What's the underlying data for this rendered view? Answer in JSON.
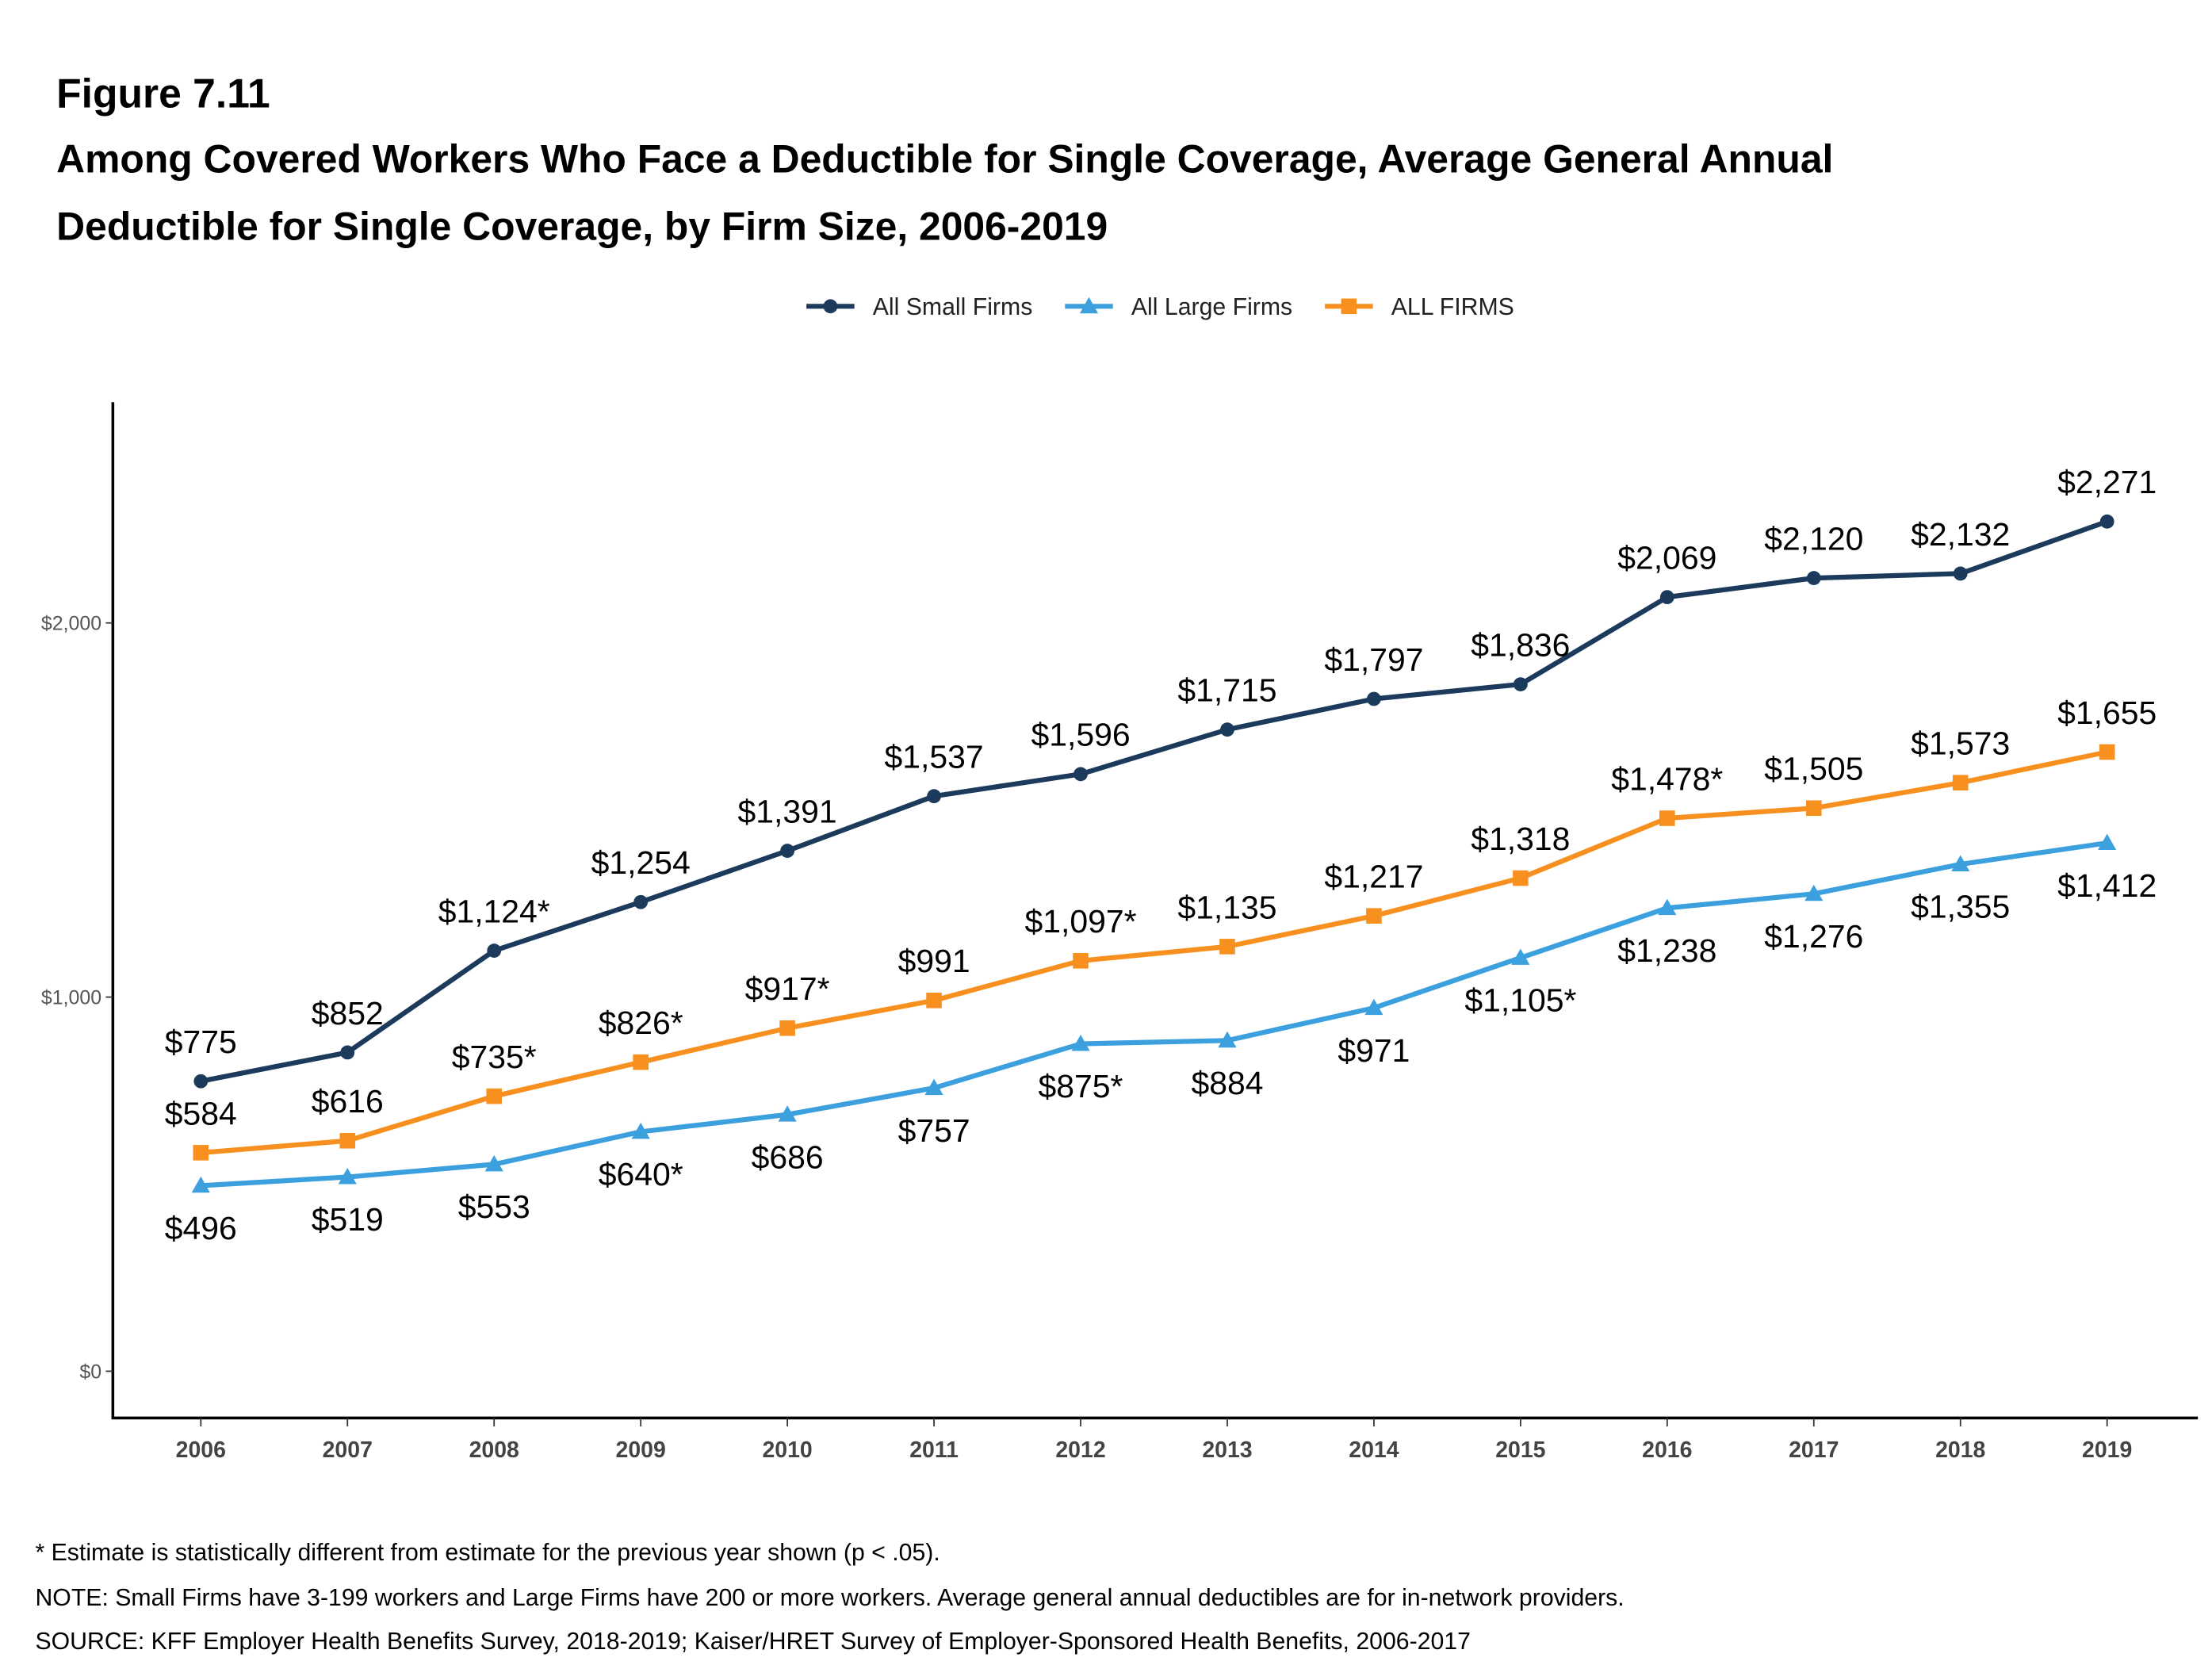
{
  "chart_data": {
    "type": "line",
    "figure_label": "Figure 7.11",
    "title": [
      "Among Covered Workers Who Face a Deductible for Single Coverage, Average General Annual",
      "Deductible for Single Coverage, by Firm Size, 2006-2019"
    ],
    "categories": [
      "2006",
      "2007",
      "2008",
      "2009",
      "2010",
      "2011",
      "2012",
      "2013",
      "2014",
      "2015",
      "2016",
      "2017",
      "2018",
      "2019"
    ],
    "series": [
      {
        "name": "All Small Firms",
        "color": "#1b3a5c",
        "marker": "circle",
        "label_position": "above",
        "values": [
          775,
          852,
          1124,
          1254,
          1391,
          1537,
          1596,
          1715,
          1797,
          1836,
          2069,
          2120,
          2132,
          2271
        ],
        "value_labels": [
          "$775",
          "$852",
          "$1,124*",
          "$1,254",
          "$1,391",
          "$1,537",
          "$1,596",
          "$1,715",
          "$1,797",
          "$1,836",
          "$2,069",
          "$2,120",
          "$2,132",
          "$2,271"
        ]
      },
      {
        "name": "All Large Firms",
        "color": "#3ba0dd",
        "marker": "triangle",
        "label_position": "below",
        "values": [
          496,
          519,
          553,
          640,
          686,
          757,
          875,
          884,
          971,
          1105,
          1238,
          1276,
          1355,
          1412
        ],
        "value_labels": [
          "$496",
          "$519",
          "$553",
          "$640*",
          "$686",
          "$757",
          "$875*",
          "$884",
          "$971",
          "$1,105*",
          "$1,238",
          "$1,276",
          "$1,355",
          "$1,412"
        ]
      },
      {
        "name": "ALL FIRMS",
        "color": "#f7901e",
        "marker": "square",
        "label_position": "above",
        "values": [
          584,
          616,
          735,
          826,
          917,
          991,
          1097,
          1135,
          1217,
          1318,
          1478,
          1505,
          1573,
          1655
        ],
        "value_labels": [
          "$584",
          "$616",
          "$735*",
          "$826*",
          "$917*",
          "$991",
          "$1,097*",
          "$1,135",
          "$1,217",
          "$1,318",
          "$1,478*",
          "$1,505",
          "$1,573",
          "$1,655"
        ]
      }
    ],
    "ylim": [
      -125,
      2590
    ],
    "yticks": [
      {
        "value": 0,
        "label": "$0"
      },
      {
        "value": 1000,
        "label": "$1,000"
      },
      {
        "value": 2000,
        "label": "$2,000"
      }
    ],
    "grid": false,
    "legend": "top",
    "notes": [
      "* Estimate is statistically different from estimate for the previous year shown (p < .05).",
      "NOTE: Small Firms have 3-199 workers and Large Firms have 200 or more workers. Average general annual deductibles are for in-network providers.",
      "SOURCE: KFF Employer Health Benefits Survey, 2018-2019; Kaiser/HRET Survey of Employer-Sponsored Health Benefits, 2006-2017"
    ]
  }
}
